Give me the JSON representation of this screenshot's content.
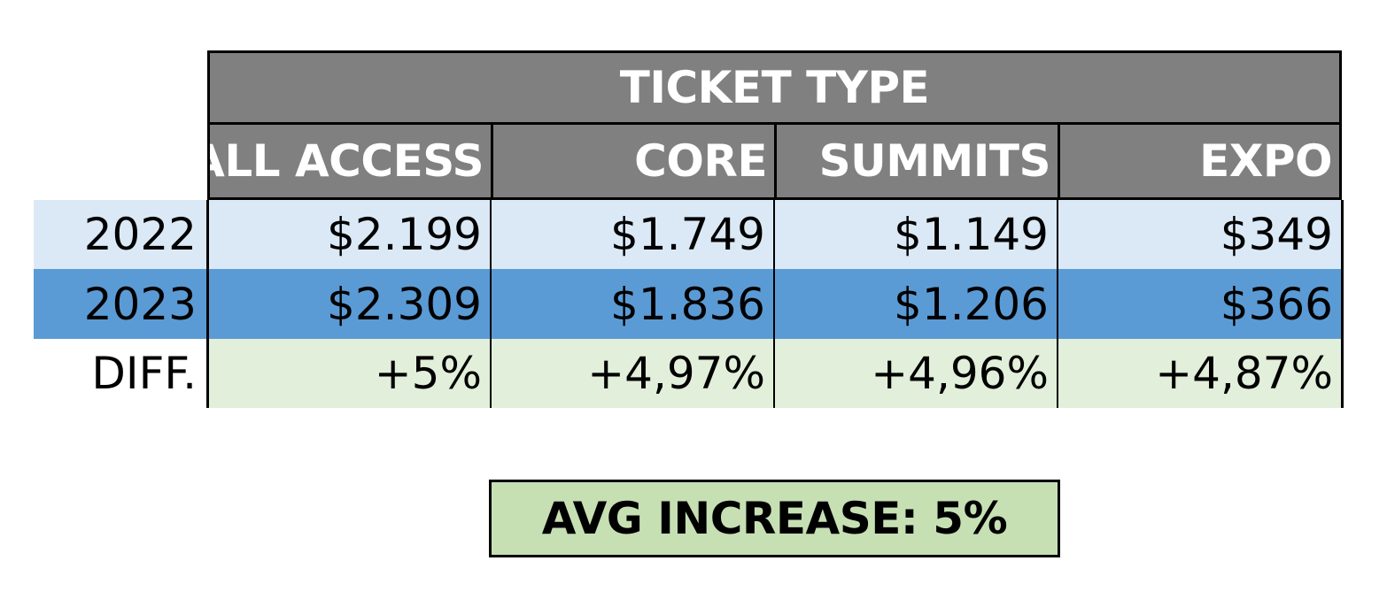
{
  "chart_data": {
    "type": "table",
    "title": "TICKET TYPE",
    "columns": [
      "ALL ACCESS",
      "CORE",
      "SUMMITS",
      "EXPO"
    ],
    "rows": [
      {
        "label": "2022",
        "values": [
          "$2.199",
          "$1.749",
          "$1.149",
          "$349"
        ]
      },
      {
        "label": "2023",
        "values": [
          "$2.309",
          "$1.836",
          "$1.206",
          "$366"
        ]
      },
      {
        "label": "DIFF.",
        "values": [
          "+5%",
          "+4,97%",
          "+4,96%",
          "+4,87%"
        ]
      }
    ],
    "summary": "AVG INCREASE: 5%"
  },
  "colors": {
    "header_bg": "#808080",
    "row_2022_bg": "#dbe9f6",
    "row_2023_bg": "#5b9bd5",
    "row_diff_bg": "#e2efda",
    "summary_bg": "#c6e0b4"
  }
}
